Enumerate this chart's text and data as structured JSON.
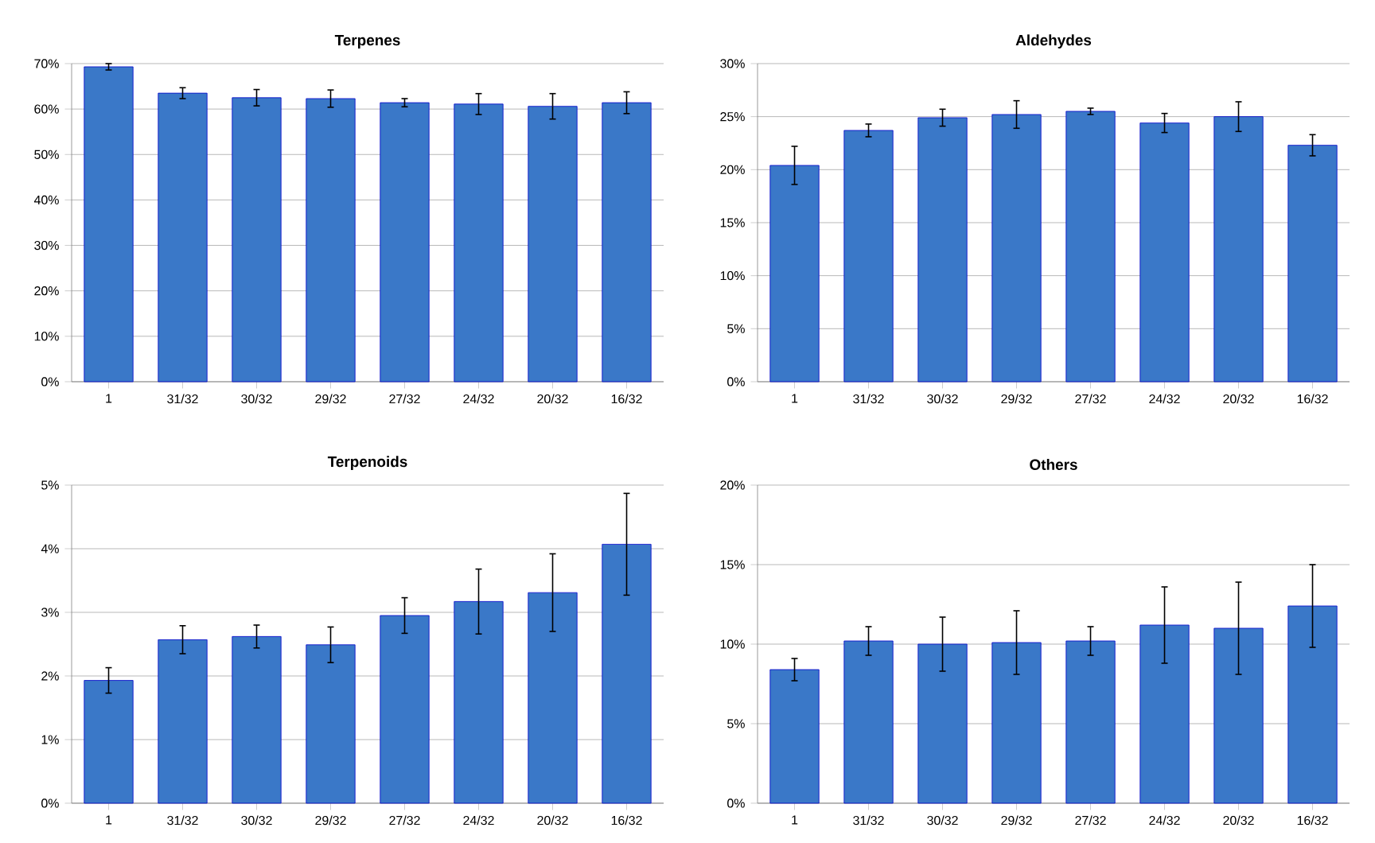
{
  "chart_data": [
    {
      "type": "bar",
      "title": "Terpenes",
      "categories": [
        "1",
        "31/32",
        "30/32",
        "29/32",
        "27/32",
        "24/32",
        "20/32",
        "16/32"
      ],
      "values": [
        69.3,
        63.5,
        62.5,
        62.3,
        61.4,
        61.1,
        60.6,
        61.4
      ],
      "errors": [
        0.7,
        1.2,
        1.8,
        1.9,
        0.9,
        2.3,
        2.8,
        2.4
      ],
      "color": "#3a78c8",
      "ylim": [
        0,
        70
      ],
      "yticks": [
        {
          "value": 0,
          "label": "0%"
        },
        {
          "value": 10,
          "label": "10%"
        },
        {
          "value": 20,
          "label": "20%"
        },
        {
          "value": 30,
          "label": "30%"
        },
        {
          "value": 40,
          "label": "40%"
        },
        {
          "value": 50,
          "label": "50%"
        },
        {
          "value": 60,
          "label": "60%"
        },
        {
          "value": 70,
          "label": "70%"
        }
      ],
      "grid": "y"
    },
    {
      "type": "bar",
      "title": "Aldehydes",
      "categories": [
        "1",
        "31/32",
        "30/32",
        "29/32",
        "27/32",
        "24/32",
        "20/32",
        "16/32"
      ],
      "values": [
        20.4,
        23.7,
        24.9,
        25.2,
        25.5,
        24.4,
        25.0,
        22.3
      ],
      "errors": [
        1.8,
        0.6,
        0.8,
        1.3,
        0.3,
        0.9,
        1.4,
        1.0
      ],
      "color": "#3a78c8",
      "ylim": [
        0,
        30
      ],
      "yticks": [
        {
          "value": 0,
          "label": "0%"
        },
        {
          "value": 5,
          "label": "5%"
        },
        {
          "value": 10,
          "label": "10%"
        },
        {
          "value": 15,
          "label": "15%"
        },
        {
          "value": 20,
          "label": "20%"
        },
        {
          "value": 25,
          "label": "25%"
        },
        {
          "value": 30,
          "label": "30%"
        }
      ],
      "grid": "y"
    },
    {
      "type": "bar",
      "title": "Terpenoids",
      "categories": [
        "1",
        "31/32",
        "30/32",
        "29/32",
        "27/32",
        "24/32",
        "20/32",
        "16/32"
      ],
      "values": [
        1.93,
        2.57,
        2.62,
        2.49,
        2.95,
        3.17,
        3.31,
        4.07
      ],
      "errors": [
        0.2,
        0.22,
        0.18,
        0.28,
        0.28,
        0.51,
        0.61,
        0.8
      ],
      "color": "#3a78c8",
      "ylim": [
        0,
        5
      ],
      "yticks": [
        {
          "value": 0,
          "label": "0%"
        },
        {
          "value": 1,
          "label": "1%"
        },
        {
          "value": 2,
          "label": "2%"
        },
        {
          "value": 3,
          "label": "3%"
        },
        {
          "value": 4,
          "label": "4%"
        },
        {
          "value": 5,
          "label": "5%"
        }
      ],
      "grid": "y"
    },
    {
      "type": "bar",
      "title": "Others",
      "categories": [
        "1",
        "31/32",
        "30/32",
        "29/32",
        "27/32",
        "24/32",
        "20/32",
        "16/32"
      ],
      "values": [
        8.4,
        10.2,
        10.0,
        10.1,
        10.2,
        11.2,
        11.0,
        12.4
      ],
      "errors": [
        0.7,
        0.9,
        1.7,
        2.0,
        0.9,
        2.4,
        2.9,
        2.6
      ],
      "color": "#3a78c8",
      "ylim": [
        0,
        20
      ],
      "yticks": [
        {
          "value": 0,
          "label": "0%"
        },
        {
          "value": 5,
          "label": "5%"
        },
        {
          "value": 10,
          "label": "10%"
        },
        {
          "value": 15,
          "label": "15%"
        },
        {
          "value": 20,
          "label": "20%"
        }
      ],
      "grid": "y"
    }
  ]
}
